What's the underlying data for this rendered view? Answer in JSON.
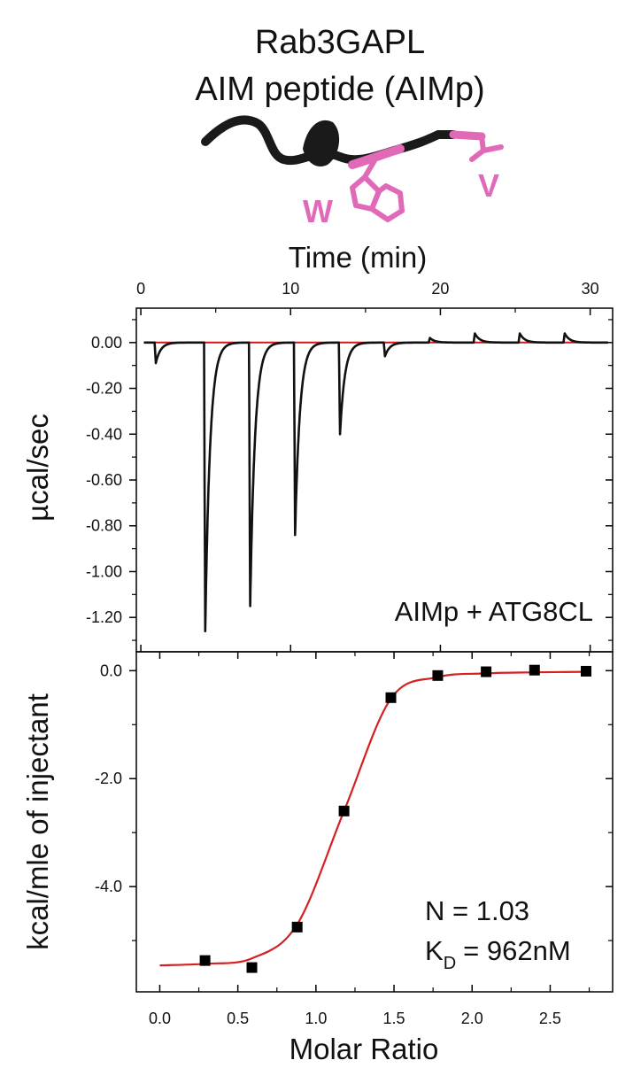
{
  "title": {
    "line1": "Rab3GAPL",
    "line2": "AIM peptide (AIMp)"
  },
  "structure": {
    "residue_labels": [
      "W",
      "V"
    ],
    "colors": {
      "backbone": "#1a1a1a",
      "highlight": "#e06ab8"
    }
  },
  "colors": {
    "thermogram_trace": "#111111",
    "baseline": "#d01818",
    "fit_curve": "#d42020",
    "markers": "#000000",
    "axes": "#000000"
  },
  "chart_data": [
    {
      "type": "line",
      "panel": "top",
      "xlabel": "Time (min)",
      "ylabel": "µcal/sec",
      "xlim": [
        -0.3,
        31.5
      ],
      "ylim": [
        -1.35,
        0.15
      ],
      "x_ticks": [
        0,
        10,
        20,
        30
      ],
      "x_tick_labels": [
        "0",
        "10",
        "20",
        "30"
      ],
      "y_ticks": [
        0.0,
        -0.2,
        -0.4,
        -0.6,
        -0.8,
        -1.0,
        -1.2
      ],
      "y_tick_labels": [
        "0.00",
        "-0.20",
        "-0.40",
        "-0.60",
        "-0.80",
        "-1.00",
        "-1.20"
      ],
      "baseline": 0.0,
      "injections": [
        {
          "time": 1.0,
          "peak": -0.09
        },
        {
          "time": 4.3,
          "peak": -1.26
        },
        {
          "time": 7.3,
          "peak": -1.15
        },
        {
          "time": 10.3,
          "peak": -0.84
        },
        {
          "time": 13.3,
          "peak": -0.4
        },
        {
          "time": 16.3,
          "peak": -0.06
        },
        {
          "time": 19.3,
          "peak": 0.02
        },
        {
          "time": 22.3,
          "peak": 0.04
        },
        {
          "time": 25.3,
          "peak": 0.04
        },
        {
          "time": 28.3,
          "peak": 0.04
        }
      ],
      "annotation": "AIMp + ATG8CL"
    },
    {
      "type": "scatter",
      "panel": "bottom",
      "xlabel": "Molar Ratio",
      "ylabel": "kcal/mle of injectant",
      "xlim": [
        -0.15,
        2.9
      ],
      "ylim": [
        -5.95,
        0.35
      ],
      "x_ticks": [
        0.0,
        0.5,
        1.0,
        1.5,
        2.0,
        2.5
      ],
      "x_tick_labels": [
        "0.0",
        "0.5",
        "1.0",
        "1.5",
        "2.0",
        "2.5"
      ],
      "y_ticks": [
        0.0,
        -2.0,
        -4.0
      ],
      "y_tick_labels": [
        "0.0",
        "-2.0",
        "-4.0"
      ],
      "points": {
        "x": [
          0.29,
          0.59,
          0.88,
          1.18,
          1.48,
          1.78,
          2.09,
          2.4,
          2.73
        ],
        "y": [
          -5.37,
          -5.5,
          -4.75,
          -2.6,
          -0.5,
          -0.09,
          -0.02,
          0.01,
          -0.01
        ]
      },
      "fit": {
        "x": [
          0.0,
          0.29,
          0.59,
          0.88,
          1.18,
          1.48,
          1.78,
          2.09,
          2.4,
          2.73
        ],
        "y": [
          -5.46,
          -5.43,
          -5.33,
          -4.7,
          -2.6,
          -0.52,
          -0.12,
          -0.05,
          -0.03,
          -0.02
        ]
      },
      "annotations": {
        "n": "N = 1.03",
        "kd_symbol": "K",
        "kd_sub": "D",
        "kd_value": "= 962nM"
      }
    }
  ]
}
